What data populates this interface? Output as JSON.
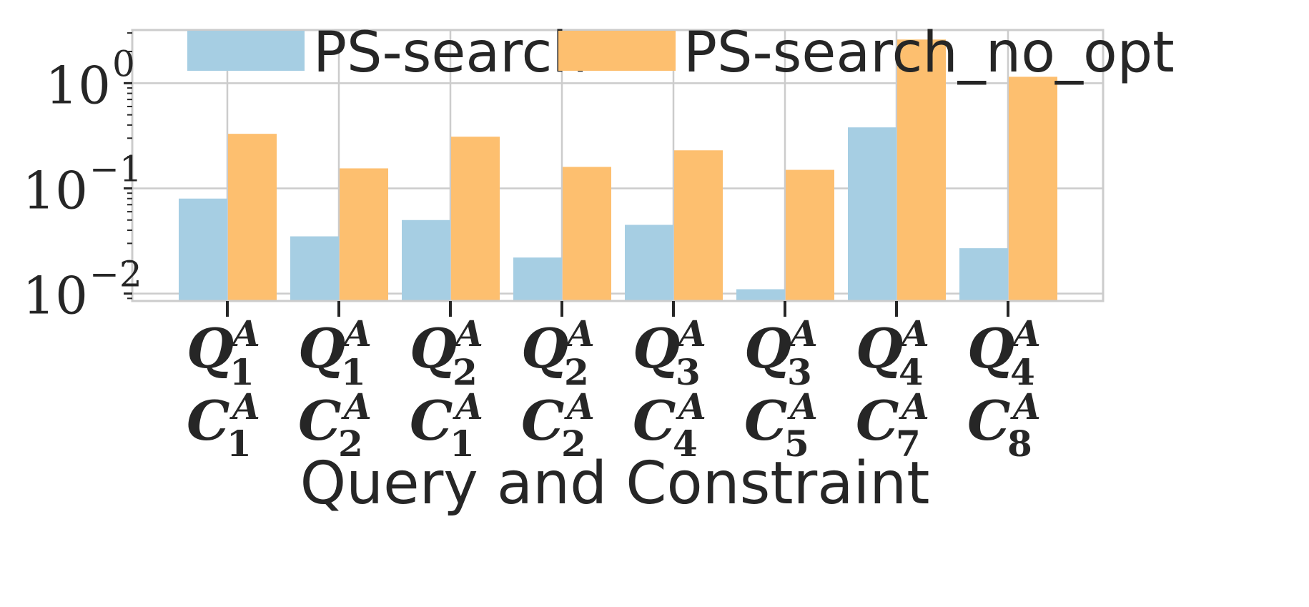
{
  "chart_data": {
    "type": "bar",
    "y_scale": "log",
    "ylim": [
      0.0085,
      3.2
    ],
    "grid": true,
    "legend_position": "top",
    "xlabel": "Query and Constraint",
    "ylabel": "",
    "y_ticks": [
      {
        "value": 0.01,
        "base": "10",
        "exp": "−2"
      },
      {
        "value": 0.1,
        "base": "10",
        "exp": "−1"
      },
      {
        "value": 1,
        "base": "10",
        "exp": "0"
      }
    ],
    "categories": [
      {
        "q_base": "Q",
        "q_sup": "A",
        "q_sub": "1",
        "c_base": "C",
        "c_sup": "A",
        "c_sub": "1"
      },
      {
        "q_base": "Q",
        "q_sup": "A",
        "q_sub": "1",
        "c_base": "C",
        "c_sup": "A",
        "c_sub": "2"
      },
      {
        "q_base": "Q",
        "q_sup": "A",
        "q_sub": "2",
        "c_base": "C",
        "c_sup": "A",
        "c_sub": "1"
      },
      {
        "q_base": "Q",
        "q_sup": "A",
        "q_sub": "2",
        "c_base": "C",
        "c_sup": "A",
        "c_sub": "2"
      },
      {
        "q_base": "Q",
        "q_sup": "A",
        "q_sub": "3",
        "c_base": "C",
        "c_sup": "A",
        "c_sub": "4"
      },
      {
        "q_base": "Q",
        "q_sup": "A",
        "q_sub": "3",
        "c_base": "C",
        "c_sup": "A",
        "c_sub": "5"
      },
      {
        "q_base": "Q",
        "q_sup": "A",
        "q_sub": "4",
        "c_base": "C",
        "c_sup": "A",
        "c_sub": "7"
      },
      {
        "q_base": "Q",
        "q_sup": "A",
        "q_sub": "4",
        "c_base": "C",
        "c_sup": "A",
        "c_sub": "8"
      }
    ],
    "series": [
      {
        "name": "PS-search",
        "color": "#a6cee3",
        "values": [
          0.08,
          0.035,
          0.05,
          0.022,
          0.045,
          0.011,
          0.38,
          0.027
        ]
      },
      {
        "name": "PS-search_no_opt",
        "color": "#fdbf6f",
        "values": [
          0.33,
          0.155,
          0.31,
          0.16,
          0.23,
          0.15,
          2.6,
          1.15
        ]
      }
    ]
  }
}
